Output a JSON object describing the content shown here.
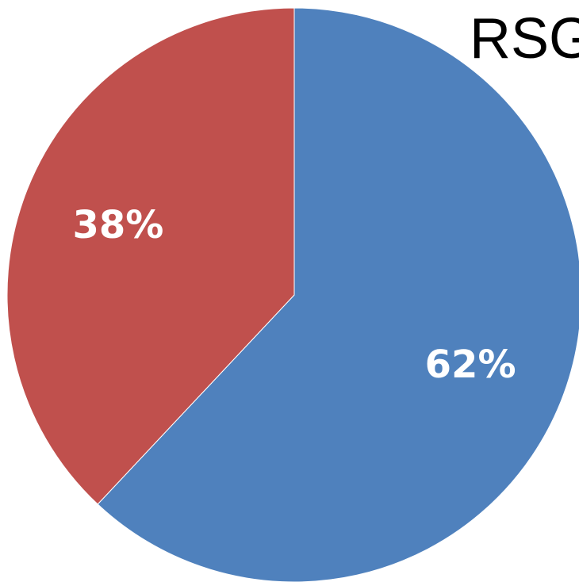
{
  "chart_data": {
    "type": "pie",
    "title": "RSG",
    "slices": [
      {
        "value": 62,
        "label": "62%",
        "color": "#4F81BD"
      },
      {
        "value": 38,
        "label": "38%",
        "color": "#C0504D"
      }
    ],
    "start_angle_deg": 0,
    "direction": "clockwise"
  }
}
